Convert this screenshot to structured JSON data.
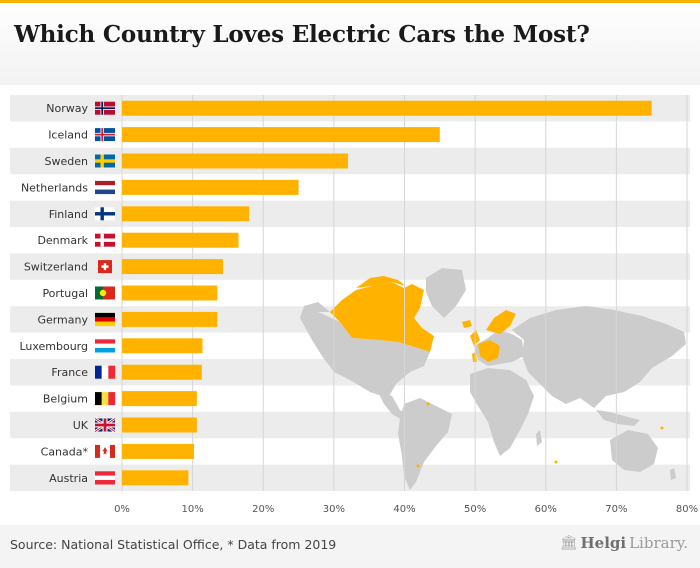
{
  "title": "Which Country Loves Electric Cars the Most?",
  "source": "Source: National Statistical Office, * Data from 2019",
  "brand": {
    "strong": "Helgi",
    "light": "Library."
  },
  "colors": {
    "bar": "#ffb300",
    "map_land": "#cccccc",
    "map_highlight": "#ffb300",
    "row_band": "#ececec",
    "grid": "#d6d6d6"
  },
  "chart_data": {
    "type": "bar",
    "orientation": "horizontal",
    "categories": [
      "Norway",
      "Iceland",
      "Sweden",
      "Netherlands",
      "Finland",
      "Denmark",
      "Switzerland",
      "Portugal",
      "Germany",
      "Luxembourg",
      "France",
      "Belgium",
      "UK",
      "Canada*",
      "Austria"
    ],
    "values": [
      75.0,
      45.0,
      32.0,
      25.0,
      18.0,
      16.5,
      14.3,
      13.5,
      13.5,
      11.4,
      11.3,
      10.6,
      10.6,
      10.2,
      9.4
    ],
    "unit": "%",
    "xlim": [
      0,
      80
    ],
    "xticks": [
      "0%",
      "10%",
      "20%",
      "30%",
      "40%",
      "50%",
      "60%",
      "70%",
      "80%"
    ],
    "grid": "vertical",
    "flags": [
      "norway-flag",
      "iceland-flag",
      "sweden-flag",
      "netherlands-flag",
      "finland-flag",
      "denmark-flag",
      "switzerland-flag",
      "portugal-flag",
      "germany-flag",
      "luxembourg-flag",
      "france-flag",
      "belgium-flag",
      "uk-flag",
      "canada-flag",
      "austria-flag"
    ]
  }
}
